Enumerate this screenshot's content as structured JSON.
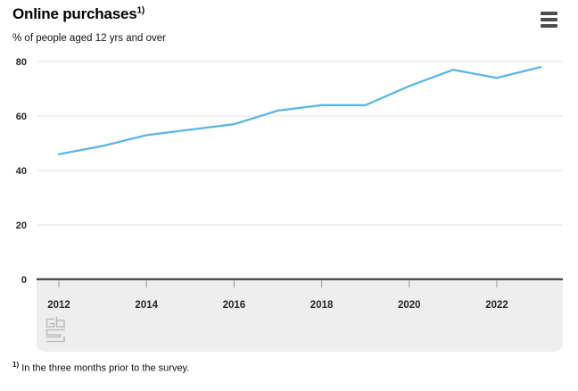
{
  "header": {
    "title": "Online purchases",
    "title_footnote_marker": "1)"
  },
  "subtitle": "% of people aged 12 yrs and over",
  "footnote": {
    "marker": "1)",
    "text": "In the three months prior to the survey."
  },
  "menu": {
    "icon": "hamburger-menu-icon"
  },
  "logo": {
    "icon": "cbs-logo-icon"
  },
  "colors": {
    "line": "#5cb6e2",
    "grid": "#e6e6e6",
    "axis": "#4f4f4f",
    "band": "#eeeeee",
    "tick": "#9a9a9a",
    "label": "#262626",
    "logo": "#bdbdbd",
    "menu_icon": "#4d4d4d"
  },
  "chart_data": {
    "type": "line",
    "title": "Online purchases",
    "subtitle": "% of people aged 12 yrs and over",
    "x": [
      2012,
      2013,
      2014,
      2015,
      2016,
      2017,
      2018,
      2019,
      2020,
      2021,
      2022,
      2023
    ],
    "series": [
      {
        "name": "Online purchases",
        "values": [
          46,
          49,
          53,
          55,
          57,
          62,
          64,
          64,
          71,
          77,
          74,
          78
        ]
      }
    ],
    "ylim": [
      0,
      80
    ],
    "yticks": [
      0,
      20,
      40,
      60,
      80
    ],
    "xticks": [
      2012,
      2014,
      2016,
      2018,
      2020,
      2022
    ],
    "xtick_labels": [
      "2012",
      "2014",
      "2016",
      "2018",
      "2020",
      "2022"
    ],
    "grid": true,
    "legend": false
  }
}
